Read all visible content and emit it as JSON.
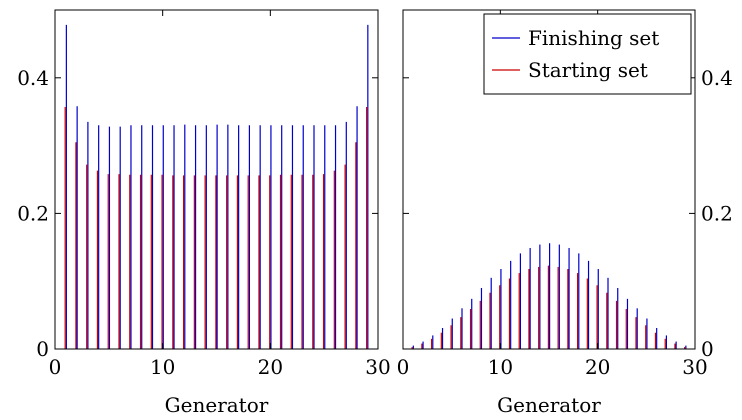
{
  "chart_data": [
    {
      "type": "bar",
      "xlabel": "Generator",
      "ylabel": "",
      "xlim": [
        0,
        30
      ],
      "ylim": [
        0,
        0.5
      ],
      "x_ticks": [
        0,
        10,
        20,
        30
      ],
      "y_ticks": [
        0,
        0.2,
        0.4
      ],
      "y_tick_side": "left",
      "grid": false,
      "legend": null,
      "x": [
        1,
        2,
        3,
        4,
        5,
        6,
        7,
        8,
        9,
        10,
        11,
        12,
        13,
        14,
        15,
        16,
        17,
        18,
        19,
        20,
        21,
        22,
        23,
        24,
        25,
        26,
        27,
        28,
        29
      ],
      "series": [
        {
          "name": "Finishing set",
          "color": "#0000cc",
          "values": [
            0.478,
            0.358,
            0.335,
            0.33,
            0.328,
            0.328,
            0.33,
            0.33,
            0.33,
            0.33,
            0.33,
            0.331,
            0.33,
            0.33,
            0.331,
            0.331,
            0.33,
            0.33,
            0.33,
            0.33,
            0.33,
            0.33,
            0.33,
            0.33,
            0.33,
            0.33,
            0.335,
            0.358,
            0.478
          ]
        },
        {
          "name": "Starting set",
          "color": "#cc0000",
          "values": [
            0.357,
            0.305,
            0.272,
            0.263,
            0.258,
            0.258,
            0.257,
            0.257,
            0.257,
            0.257,
            0.256,
            0.256,
            0.256,
            0.256,
            0.256,
            0.256,
            0.256,
            0.256,
            0.256,
            0.256,
            0.257,
            0.257,
            0.257,
            0.257,
            0.258,
            0.263,
            0.272,
            0.305,
            0.357
          ]
        }
      ]
    },
    {
      "type": "bar",
      "xlabel": "Generator",
      "ylabel": "",
      "xlim": [
        0,
        30
      ],
      "ylim": [
        0,
        0.5
      ],
      "x_ticks": [
        0,
        10,
        20,
        30
      ],
      "y_ticks": [
        0,
        0.2,
        0.4
      ],
      "y_tick_side": "right",
      "grid": false,
      "legend": "top-right",
      "x": [
        1,
        2,
        3,
        4,
        5,
        6,
        7,
        8,
        9,
        10,
        11,
        12,
        13,
        14,
        15,
        16,
        17,
        18,
        19,
        20,
        21,
        22,
        23,
        24,
        25,
        26,
        27,
        28,
        29
      ],
      "series": [
        {
          "name": "Finishing set",
          "color": "#0000cc",
          "values": [
            0.005,
            0.011,
            0.02,
            0.031,
            0.045,
            0.06,
            0.074,
            0.09,
            0.105,
            0.118,
            0.13,
            0.141,
            0.149,
            0.154,
            0.156,
            0.154,
            0.149,
            0.141,
            0.13,
            0.118,
            0.105,
            0.09,
            0.074,
            0.06,
            0.045,
            0.031,
            0.02,
            0.011,
            0.005
          ]
        },
        {
          "name": "Starting set",
          "color": "#cc0000",
          "values": [
            0.003,
            0.008,
            0.015,
            0.024,
            0.035,
            0.047,
            0.059,
            0.071,
            0.083,
            0.094,
            0.104,
            0.112,
            0.118,
            0.121,
            0.123,
            0.121,
            0.118,
            0.112,
            0.104,
            0.094,
            0.083,
            0.071,
            0.059,
            0.047,
            0.035,
            0.024,
            0.015,
            0.008,
            0.003
          ]
        }
      ]
    }
  ]
}
